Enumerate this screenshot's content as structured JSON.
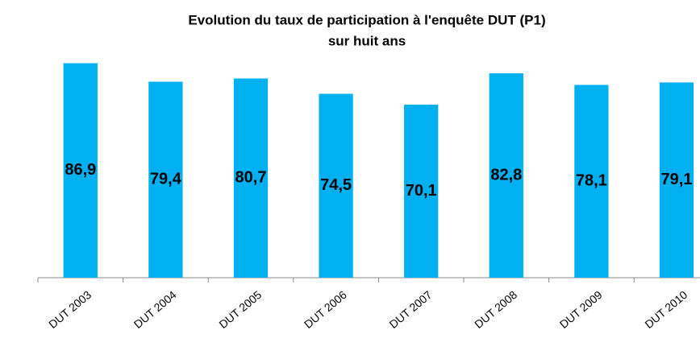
{
  "chart_data": {
    "type": "bar",
    "title": [
      "Evolution du taux de participation à l'enquête DUT (P1)",
      "sur huit ans"
    ],
    "categories": [
      "DUT 2003",
      "DUT 2004",
      "DUT 2005",
      "DUT 2006",
      "DUT 2007",
      "DUT 2008",
      "DUT 2009",
      "DUT 2010"
    ],
    "values": [
      86.9,
      79.4,
      80.7,
      74.5,
      70.1,
      82.8,
      78.1,
      79.1
    ],
    "value_labels": [
      "86,9",
      "79,4",
      "80,7",
      "74,5",
      "70,1",
      "82,8",
      "78,1",
      "79,1"
    ],
    "color": "#00b0f0",
    "ylim": [
      0,
      90
    ]
  }
}
